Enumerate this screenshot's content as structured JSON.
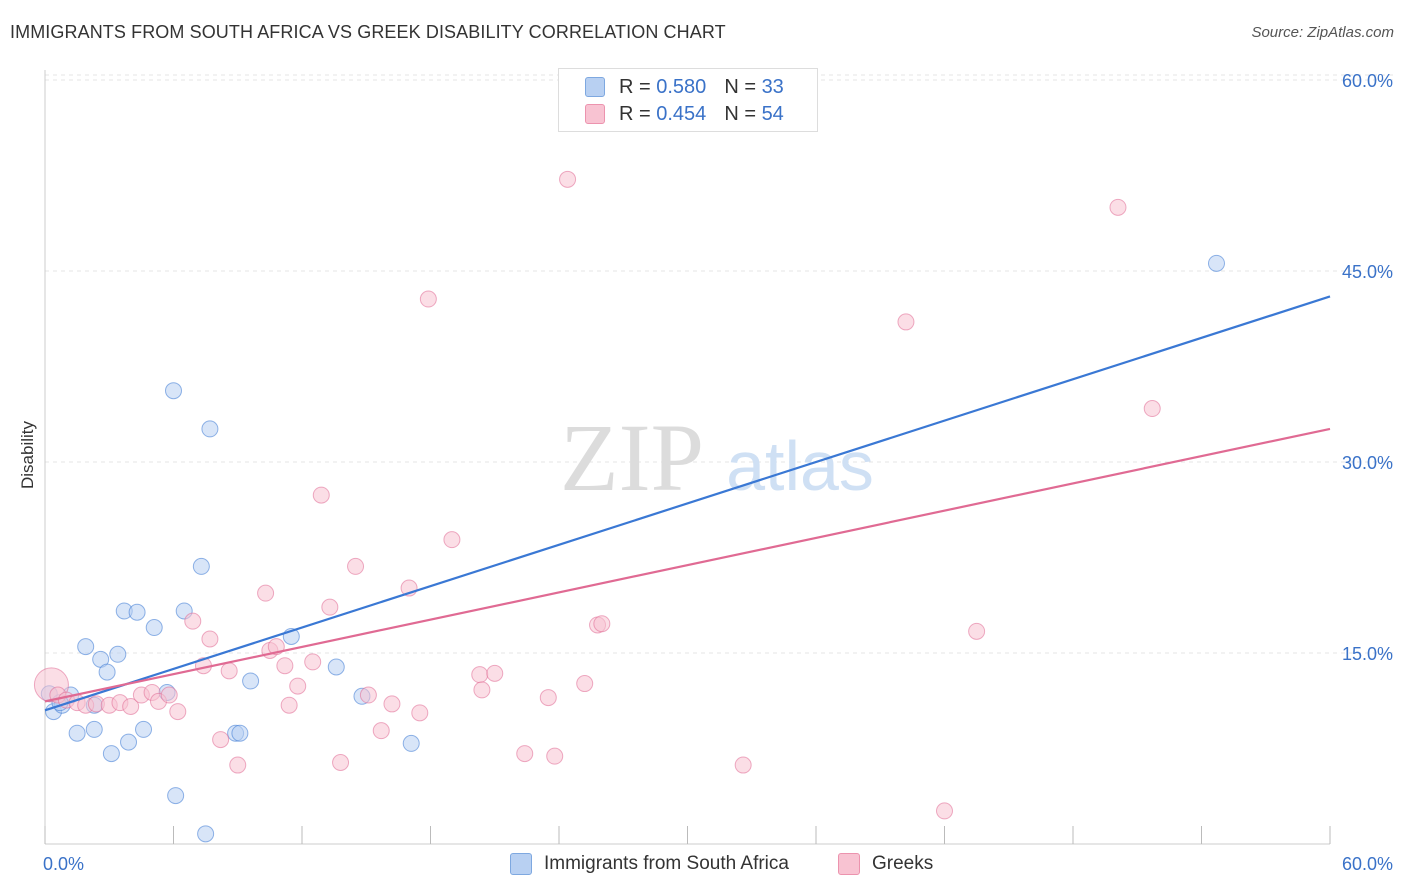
{
  "title": "IMMIGRANTS FROM SOUTH AFRICA VS GREEK DISABILITY CORRELATION CHART",
  "source": "Source: ZipAtlas.com",
  "watermark": {
    "part1": "ZIP",
    "part2": "atlas"
  },
  "legend": {
    "items": [
      {
        "r_label": "R =",
        "r_value": "0.580",
        "n_label": "N =",
        "n_value": "33",
        "fill": "#b8d0f2",
        "stroke": "#7ea8e0"
      },
      {
        "r_label": "R =",
        "r_value": "0.454",
        "n_label": "N =",
        "n_value": "54",
        "fill": "#f8c3d2",
        "stroke": "#ec93ae"
      }
    ]
  },
  "chart_data": {
    "type": "scatter",
    "ylabel": "Disability",
    "xlim": [
      0,
      60
    ],
    "ylim": [
      0,
      60
    ],
    "x_tick_labels": [
      "0.0%",
      "60.0%"
    ],
    "y_tick_values": [
      15,
      30,
      45,
      60
    ],
    "y_tick_labels": [
      "15.0%",
      "30.0%",
      "45.0%",
      "60.0%"
    ],
    "grid": true,
    "legend_position": "top-center",
    "series": [
      {
        "name": "Immigrants from South Africa",
        "color": "#3a78d4",
        "fill": "#b8d0f2",
        "trend": {
          "x0": 0,
          "y0": 10.5,
          "x1": 60,
          "y1": 43
        },
        "points": [
          [
            0.2,
            11.8
          ],
          [
            0.4,
            10.4
          ],
          [
            0.8,
            10.9
          ],
          [
            1.2,
            11.7
          ],
          [
            1.5,
            8.7
          ],
          [
            1.9,
            15.5
          ],
          [
            2.3,
            10.9
          ],
          [
            2.3,
            9.0
          ],
          [
            2.6,
            14.5
          ],
          [
            2.9,
            13.5
          ],
          [
            3.1,
            7.1
          ],
          [
            3.4,
            14.9
          ],
          [
            3.7,
            18.3
          ],
          [
            3.9,
            8.0
          ],
          [
            4.3,
            18.2
          ],
          [
            4.6,
            9.0
          ],
          [
            5.1,
            17.0
          ],
          [
            5.7,
            11.9
          ],
          [
            6.0,
            35.6
          ],
          [
            6.1,
            3.8
          ],
          [
            6.5,
            18.3
          ],
          [
            7.3,
            21.8
          ],
          [
            7.5,
            0.8
          ],
          [
            7.7,
            32.6
          ],
          [
            8.9,
            8.7
          ],
          [
            9.1,
            8.7
          ],
          [
            9.6,
            12.8
          ],
          [
            11.5,
            16.3
          ],
          [
            13.6,
            13.9
          ],
          [
            14.8,
            11.6
          ],
          [
            17.1,
            7.9
          ],
          [
            54.7,
            45.6
          ],
          [
            0.7,
            11.1
          ]
        ]
      },
      {
        "name": "Greeks",
        "color": "#e06a93",
        "fill": "#f8c3d2",
        "trend": {
          "x0": 0,
          "y0": 11.2,
          "x1": 60,
          "y1": 32.6
        },
        "points": [
          [
            0.3,
            12.5
          ],
          [
            0.6,
            11.7
          ],
          [
            1.0,
            11.3
          ],
          [
            1.5,
            11.1
          ],
          [
            1.9,
            10.9
          ],
          [
            2.4,
            11.0
          ],
          [
            3.0,
            10.9
          ],
          [
            3.5,
            11.1
          ],
          [
            4.0,
            10.8
          ],
          [
            4.5,
            11.7
          ],
          [
            5.0,
            11.9
          ],
          [
            5.3,
            11.2
          ],
          [
            5.8,
            11.7
          ],
          [
            6.2,
            10.4
          ],
          [
            6.9,
            17.5
          ],
          [
            7.4,
            14.0
          ],
          [
            7.7,
            16.1
          ],
          [
            8.2,
            8.2
          ],
          [
            8.6,
            13.6
          ],
          [
            9.0,
            6.2
          ],
          [
            10.5,
            15.2
          ],
          [
            10.8,
            15.5
          ],
          [
            10.3,
            19.7
          ],
          [
            11.2,
            14.0
          ],
          [
            11.4,
            10.9
          ],
          [
            11.8,
            12.4
          ],
          [
            12.5,
            14.3
          ],
          [
            12.9,
            27.4
          ],
          [
            13.3,
            18.6
          ],
          [
            13.8,
            6.4
          ],
          [
            14.5,
            21.8
          ],
          [
            15.1,
            11.7
          ],
          [
            15.7,
            8.9
          ],
          [
            16.2,
            11.0
          ],
          [
            17.0,
            20.1
          ],
          [
            17.5,
            10.3
          ],
          [
            17.9,
            42.8
          ],
          [
            19.0,
            23.9
          ],
          [
            20.3,
            13.3
          ],
          [
            20.4,
            12.1
          ],
          [
            21.0,
            13.4
          ],
          [
            22.4,
            7.1
          ],
          [
            23.5,
            11.5
          ],
          [
            23.8,
            6.9
          ],
          [
            24.4,
            52.2
          ],
          [
            25.2,
            12.6
          ],
          [
            25.8,
            17.2
          ],
          [
            26.0,
            17.3
          ],
          [
            32.6,
            6.2
          ],
          [
            40.2,
            41.0
          ],
          [
            42.0,
            2.6
          ],
          [
            43.5,
            16.7
          ],
          [
            50.1,
            50.0
          ],
          [
            51.7,
            34.2
          ]
        ]
      }
    ]
  }
}
